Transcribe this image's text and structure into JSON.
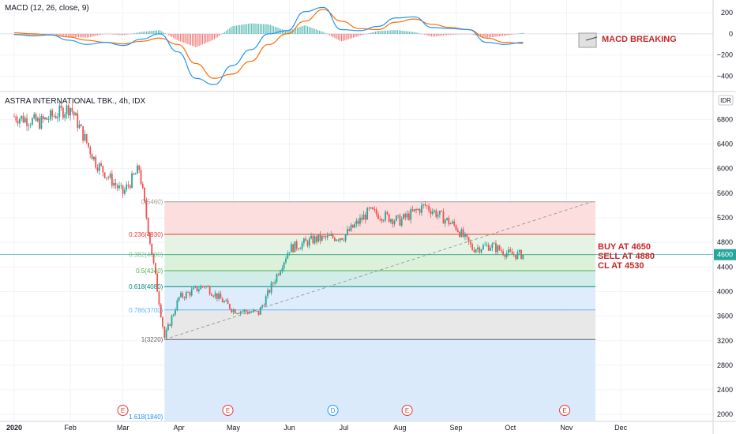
{
  "colors": {
    "up": "#26a69a",
    "down": "#ef5350",
    "macd_line": "#2196f3",
    "signal_line": "#ff6d00",
    "annotation": "#c62828",
    "axis_text": "#131722",
    "grid": "#f0f3fa"
  },
  "macd_panel": {
    "title": "MACD (12, 26, close, 9)",
    "annotation": "MACD BREAKING",
    "y_ticks": [
      "200",
      "0",
      "−200",
      "−400"
    ]
  },
  "main_panel": {
    "title": "ASTRA INTERNATIONAL TBK., 4h, IDX",
    "currency_badge": "IDR",
    "price_tag": "4600",
    "y_ticks": [
      "6800",
      "6400",
      "6000",
      "5600",
      "5200",
      "4800",
      "4400",
      "4000",
      "3600",
      "3200",
      "2800",
      "2400",
      "2000"
    ],
    "trade_notes": [
      "BUY AT 4650",
      "SELL AT 4880",
      "CL AT 4530"
    ]
  },
  "x_axis": {
    "labels": [
      "2020",
      "Feb",
      "Mar",
      "Apr",
      "May",
      "Jun",
      "Jul",
      "Aug",
      "Sep",
      "Oct",
      "Nov",
      "Dec"
    ]
  },
  "event_markers": [
    "E",
    "E",
    "D",
    "E",
    "E"
  ],
  "fibonacci": [
    {
      "label": "0(5460)",
      "price": 5460,
      "color": "#9e9e9e"
    },
    {
      "label": "0.236(4930)",
      "price": 4930,
      "color": "#e53935"
    },
    {
      "label": "0.382(4600)",
      "price": 4600,
      "color": "#81c784"
    },
    {
      "label": "0.5(4340)",
      "price": 4340,
      "color": "#4caf50"
    },
    {
      "label": "0.618(4080)",
      "price": 4080,
      "color": "#00897b"
    },
    {
      "label": "0.786(3700)",
      "price": 3700,
      "color": "#64b5f6"
    },
    {
      "label": "1(3220)",
      "price": 3220,
      "color": "#616161"
    },
    {
      "label": "1.618(1840)",
      "price": 1840,
      "color": "#2196f3"
    }
  ],
  "chart_data": {
    "type": "line",
    "title": "ASTRA INTERNATIONAL TBK., 4h, IDX",
    "x": [
      "2020-01",
      "2020-01-15",
      "2020-02",
      "2020-02-15",
      "2020-03",
      "2020-03-10",
      "2020-03-24",
      "2020-04",
      "2020-04-15",
      "2020-05",
      "2020-05-15",
      "2020-06",
      "2020-06-15",
      "2020-07",
      "2020-07-15",
      "2020-08",
      "2020-08-15",
      "2020-09",
      "2020-09-10",
      "2020-09-20",
      "2020-10"
    ],
    "series": [
      {
        "values": [
          6850,
          6750,
          7000,
          6100,
          5600,
          6000,
          3250,
          3900,
          4100,
          3700,
          3650,
          4700,
          4850,
          4900,
          5300,
          5150,
          5400,
          5050,
          4700,
          4750,
          4600
        ]
      }
    ],
    "ylim": [
      1900,
      7100
    ],
    "trend_line": {
      "from": [
        "2020-03-24",
        3220
      ],
      "to": [
        "2020-11-15",
        5460
      ]
    }
  },
  "macd_data": {
    "ylim": [
      -530,
      290
    ],
    "x_end": "2020-10-08",
    "macd": [
      -5,
      -20,
      -10,
      -60,
      -100,
      -80,
      -110,
      -50,
      0,
      -170,
      -420,
      -480,
      -300,
      -150,
      0,
      30,
      210,
      250,
      40,
      30,
      70,
      150,
      160,
      60,
      50,
      40,
      -80,
      -100,
      -80
    ],
    "signal": [
      10,
      0,
      -10,
      -30,
      -60,
      -80,
      -95,
      -70,
      -40,
      -100,
      -280,
      -420,
      -380,
      -260,
      -100,
      0,
      120,
      230,
      120,
      50,
      40,
      110,
      140,
      90,
      60,
      40,
      -40,
      -80,
      -90
    ]
  }
}
